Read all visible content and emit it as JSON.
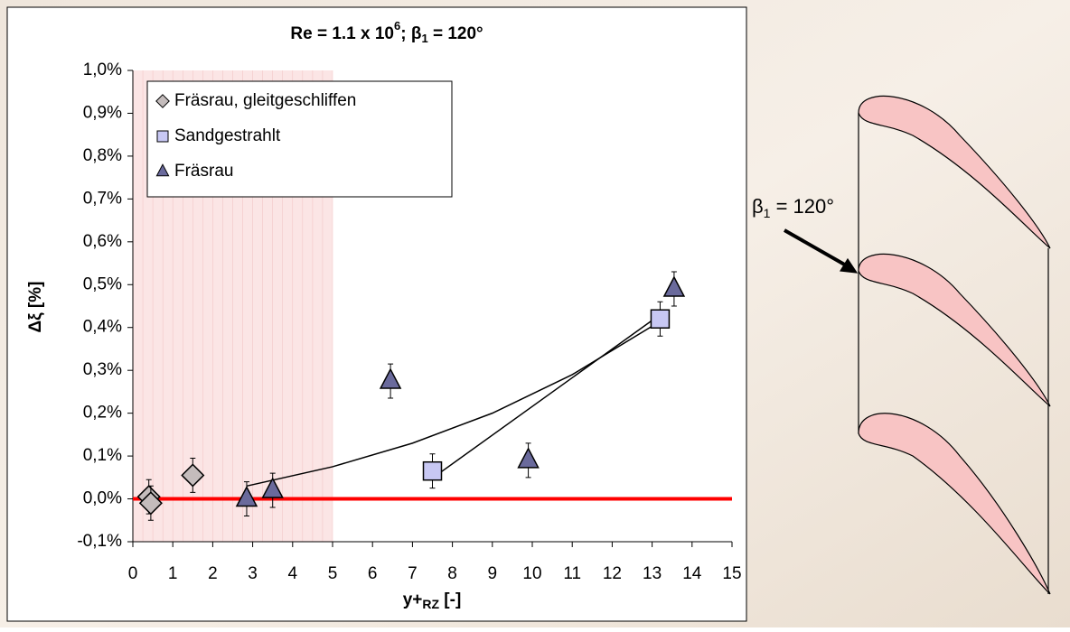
{
  "chart_data": {
    "type": "scatter",
    "title": {
      "text": "Re = 1.1 x 10",
      "sup": "6",
      "mid": "; β",
      "sub": "1",
      "end": " = 120°"
    },
    "x_label": {
      "text": "y+",
      "sub": "RZ",
      "end": " [-]"
    },
    "y_label": "Δξ [%]",
    "xlim": [
      0,
      15
    ],
    "xticks": [
      0,
      1,
      2,
      3,
      4,
      5,
      6,
      7,
      8,
      9,
      10,
      11,
      12,
      13,
      14,
      15
    ],
    "ylim": [
      -0.1,
      1.0
    ],
    "yticks": [
      {
        "value": -0.1,
        "label": "-0,1%"
      },
      {
        "value": 0,
        "label": "0,0%"
      },
      {
        "value": 0.1,
        "label": "0,1%"
      },
      {
        "value": 0.2,
        "label": "0,2%"
      },
      {
        "value": 0.3,
        "label": "0,3%"
      },
      {
        "value": 0.4,
        "label": "0,4%"
      },
      {
        "value": 0.5,
        "label": "0,5%"
      },
      {
        "value": 0.6,
        "label": "0,6%"
      },
      {
        "value": 0.7,
        "label": "0,7%"
      },
      {
        "value": 0.8,
        "label": "0,8%"
      },
      {
        "value": 0.9,
        "label": "0,9%"
      },
      {
        "value": 1.0,
        "label": "1,0%"
      }
    ],
    "legend": "top-left",
    "series": [
      {
        "name": "Fräsrau, gleitgeschliffen",
        "marker": "diamond",
        "color": "#c4bcbc",
        "x": [
          0.4,
          0.45,
          1.5
        ],
        "values": [
          0.005,
          -0.01,
          0.055
        ],
        "errors": [
          0.04,
          0.04,
          0.04
        ]
      },
      {
        "name": "Sandgestrahlt",
        "marker": "square",
        "color": "#c8c8f4",
        "x": [
          7.5,
          13.2
        ],
        "values": [
          0.065,
          0.42
        ],
        "errors": [
          0.04,
          0.04
        ]
      },
      {
        "name": "Fräsrau",
        "marker": "triangle",
        "color": "#6a6a9c",
        "x": [
          2.85,
          3.5,
          6.45,
          9.9,
          13.55
        ],
        "values": [
          0.0,
          0.02,
          0.275,
          0.09,
          0.49
        ],
        "errors": [
          0.04,
          0.04,
          0.04,
          0.04,
          0.04
        ]
      }
    ],
    "trend_lines": [
      {
        "color": "#000000",
        "x": [
          2.85,
          5,
          7,
          9,
          11,
          13.3
        ],
        "values": [
          0.03,
          0.075,
          0.13,
          0.2,
          0.29,
          0.42
        ]
      },
      {
        "color": "#000000",
        "x": [
          7.6,
          13.2
        ],
        "values": [
          0.055,
          0.43
        ]
      }
    ],
    "reference_line": {
      "value": 0,
      "color": "#ff0000"
    },
    "shaded_region": {
      "x": [
        0,
        5
      ],
      "color": "#f9dcdc"
    },
    "annotation": {
      "text": "β",
      "sub": "1",
      "end": " = 120°"
    }
  }
}
